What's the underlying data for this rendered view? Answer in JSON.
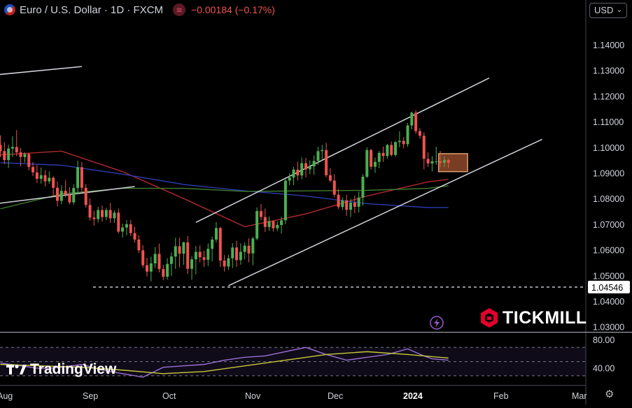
{
  "header": {
    "symbol": "Euro / U.S. Dollar · 1D · FXCM",
    "change": "−0.00184 (−0.17%)",
    "icons": [
      "flag-icon",
      "indicator-icon"
    ]
  },
  "currency": "USD",
  "brand": {
    "tickmill": "TICKMILL",
    "tradingview": "TradingView"
  },
  "colors": {
    "background": "#000000",
    "up": "#4caf50",
    "down": "#ef5350",
    "sma_red": "#b2282e",
    "sma_green": "#3f7d2f",
    "sma_blue": "#2a3db0",
    "channel": "#d1d4dc",
    "rsi": "#9b6fd6",
    "rsi_ma": "#c8c83a",
    "tickmill_red": "#e4002b"
  },
  "chart_data": [
    {
      "type": "candlestick",
      "title": "Euro / U.S. Dollar · 1D · FXCM",
      "x_ticks": [
        "Aug",
        "Sep",
        "Oct",
        "Nov",
        "Dec",
        "2024",
        "Feb",
        "Mar"
      ],
      "y_ticks": [
        1.03,
        1.04,
        1.05,
        1.06,
        1.07,
        1.08,
        1.09,
        1.1,
        1.11,
        1.12,
        1.13,
        1.14
      ],
      "ylim": [
        1.028,
        1.152
      ],
      "price_label": "1.04546",
      "support_level": 1.04546,
      "candles": [
        [
          1.101,
          1.1046,
          1.0962,
          1.0985
        ],
        [
          1.0985,
          1.102,
          1.0934,
          1.095
        ],
        [
          1.095,
          1.101,
          1.0919,
          1.0995
        ],
        [
          1.0995,
          1.1043,
          1.0962,
          1.1001
        ],
        [
          1.1001,
          1.1067,
          1.0965,
          1.098
        ],
        [
          1.098,
          1.0997,
          1.0926,
          1.0962
        ],
        [
          1.0962,
          1.098,
          1.094,
          1.0974
        ],
        [
          1.0974,
          1.0978,
          1.091,
          1.0923
        ],
        [
          1.0923,
          1.0942,
          1.0888,
          1.0902
        ],
        [
          1.0902,
          1.0931,
          1.0861,
          1.0877
        ],
        [
          1.0877,
          1.0921,
          1.0858,
          1.0891
        ],
        [
          1.0891,
          1.0911,
          1.0847,
          1.0867
        ],
        [
          1.0867,
          1.0906,
          1.0857,
          1.0881
        ],
        [
          1.0881,
          1.0887,
          1.0808,
          1.0842
        ],
        [
          1.0842,
          1.0867,
          1.077,
          1.0791
        ],
        [
          1.0791,
          1.0852,
          1.0778,
          1.083
        ],
        [
          1.083,
          1.0871,
          1.0805,
          1.0815
        ],
        [
          1.0815,
          1.0845,
          1.0777,
          1.0785
        ],
        [
          1.0785,
          1.0856,
          1.0777,
          1.0841
        ],
        [
          1.0841,
          1.0948,
          1.0818,
          1.0922
        ],
        [
          1.0922,
          1.0942,
          1.0823,
          1.0842
        ],
        [
          1.0842,
          1.0856,
          1.0764,
          1.0775
        ],
        [
          1.0775,
          1.08,
          1.0714,
          1.0726
        ],
        [
          1.0726,
          1.0752,
          1.0694,
          1.072
        ],
        [
          1.072,
          1.0768,
          1.0707,
          1.0755
        ],
        [
          1.0755,
          1.0773,
          1.071,
          1.0728
        ],
        [
          1.0728,
          1.0764,
          1.0716,
          1.0755
        ],
        [
          1.0755,
          1.0782,
          1.0705,
          1.0723
        ],
        [
          1.0723,
          1.0754,
          1.0705,
          1.0745
        ],
        [
          1.0745,
          1.0761,
          1.0663,
          1.0671
        ],
        [
          1.0671,
          1.0702,
          1.0648,
          1.0687
        ],
        [
          1.0687,
          1.0716,
          1.0657,
          1.07
        ],
        [
          1.07,
          1.0716,
          1.0653,
          1.0665
        ],
        [
          1.0665,
          1.0689,
          1.0628,
          1.064
        ],
        [
          1.064,
          1.0656,
          1.0588,
          1.0598
        ],
        [
          1.0598,
          1.0618,
          1.053,
          1.054
        ],
        [
          1.054,
          1.0569,
          1.0496,
          1.0515
        ],
        [
          1.0515,
          1.0573,
          1.0477,
          1.0547
        ],
        [
          1.0547,
          1.0611,
          1.0529,
          1.0584
        ],
        [
          1.0584,
          1.0624,
          1.0512,
          1.0525
        ],
        [
          1.0525,
          1.0542,
          1.0481,
          1.0495
        ],
        [
          1.0495,
          1.0567,
          1.0484,
          1.0545
        ],
        [
          1.0545,
          1.059,
          1.0498,
          1.0574
        ],
        [
          1.0574,
          1.0647,
          1.0526,
          1.0614
        ],
        [
          1.0614,
          1.0647,
          1.0531,
          1.0585
        ],
        [
          1.0585,
          1.0632,
          1.0541,
          1.0629
        ],
        [
          1.0629,
          1.0654,
          1.0505,
          1.0526
        ],
        [
          1.0526,
          1.0575,
          1.0483,
          1.0563
        ],
        [
          1.0563,
          1.0615,
          1.0504,
          1.0592
        ],
        [
          1.0592,
          1.0617,
          1.0551,
          1.0571
        ],
        [
          1.0571,
          1.0596,
          1.0533,
          1.0561
        ],
        [
          1.0561,
          1.0625,
          1.0537,
          1.0604
        ],
        [
          1.0604,
          1.0651,
          1.0555,
          1.064
        ],
        [
          1.064,
          1.0708,
          1.0629,
          1.0685
        ],
        [
          1.0685,
          1.069,
          1.0533,
          1.0558
        ],
        [
          1.0558,
          1.058,
          1.0515,
          1.0535
        ],
        [
          1.0535,
          1.0581,
          1.0522,
          1.0567
        ],
        [
          1.0567,
          1.0626,
          1.0529,
          1.0609
        ],
        [
          1.0609,
          1.0636,
          1.0533,
          1.056
        ],
        [
          1.056,
          1.0625,
          1.0542,
          1.0592
        ],
        [
          1.0592,
          1.0629,
          1.0563,
          1.0616
        ],
        [
          1.0616,
          1.0645,
          1.0551,
          1.0586
        ],
        [
          1.0586,
          1.0651,
          1.054,
          1.0644
        ],
        [
          1.0644,
          1.0766,
          1.0637,
          1.0751
        ],
        [
          1.0751,
          1.0779,
          1.0716,
          1.0728
        ],
        [
          1.0728,
          1.0761,
          1.067,
          1.0689
        ],
        [
          1.0689,
          1.073,
          1.0674,
          1.0712
        ],
        [
          1.0712,
          1.0714,
          1.0671,
          1.0684
        ],
        [
          1.0684,
          1.0711,
          1.0673,
          1.0697
        ],
        [
          1.0697,
          1.0729,
          1.0663,
          1.0715
        ],
        [
          1.0715,
          1.0878,
          1.07,
          1.087
        ],
        [
          1.087,
          1.0898,
          1.0852,
          1.0882
        ],
        [
          1.0882,
          1.0923,
          1.0852,
          1.0913
        ],
        [
          1.0913,
          1.0944,
          1.0871,
          1.089
        ],
        [
          1.089,
          1.096,
          1.0875,
          1.0938
        ],
        [
          1.0938,
          1.0959,
          1.0883,
          1.0914
        ],
        [
          1.0914,
          1.0949,
          1.0895,
          1.0925
        ],
        [
          1.0925,
          1.0968,
          1.0892,
          1.0947
        ],
        [
          1.0947,
          1.1002,
          1.0931,
          1.0985
        ],
        [
          1.0985,
          1.1009,
          1.0948,
          1.0989
        ],
        [
          1.0989,
          1.1017,
          1.0883,
          1.0891
        ],
        [
          1.0891,
          1.0919,
          1.0864,
          1.087
        ],
        [
          1.087,
          1.0895,
          1.0805,
          1.0815
        ],
        [
          1.0815,
          1.0837,
          1.0759,
          1.0767
        ],
        [
          1.0767,
          1.0804,
          1.0756,
          1.0793
        ],
        [
          1.0793,
          1.0815,
          1.0733,
          1.0756
        ],
        [
          1.0756,
          1.0799,
          1.0728,
          1.0784
        ],
        [
          1.0784,
          1.0811,
          1.0743,
          1.0768
        ],
        [
          1.0768,
          1.0827,
          1.0746,
          1.0804
        ],
        [
          1.0804,
          1.0895,
          1.0772,
          1.0885
        ],
        [
          1.0885,
          1.1,
          1.088,
          1.0989
        ],
        [
          1.0989,
          1.0994,
          1.0913,
          1.0924
        ],
        [
          1.0924,
          1.096,
          1.09,
          1.0943
        ],
        [
          1.0943,
          1.0986,
          1.0918,
          1.0978
        ],
        [
          1.0978,
          1.1003,
          1.0943,
          1.0966
        ],
        [
          1.0966,
          1.1013,
          1.0956,
          1.1009
        ],
        [
          1.1009,
          1.1022,
          1.0964,
          1.097
        ],
        [
          1.097,
          1.1025,
          1.0963,
          1.102
        ],
        [
          1.102,
          1.1062,
          1.1,
          1.1025
        ],
        [
          1.1025,
          1.104,
          1.0996,
          1.1012
        ],
        [
          1.1012,
          1.1095,
          1.1002,
          1.1085
        ],
        [
          1.1085,
          1.1139,
          1.107,
          1.1135
        ],
        [
          1.1135,
          1.1145,
          1.1053,
          1.1063
        ],
        [
          1.1063,
          1.1075,
          1.1034,
          1.1045
        ],
        [
          1.1045,
          1.1058,
          1.0914,
          1.0955
        ],
        [
          1.0955,
          1.098,
          1.0923,
          1.0937
        ],
        [
          1.0937,
          1.0965,
          1.0906,
          1.0945
        ],
        [
          1.0945,
          1.1002,
          1.0932,
          1.0945
        ],
        [
          1.0945,
          1.0986,
          1.0921,
          1.094
        ],
        [
          1.094,
          1.0965,
          1.0923,
          1.095
        ],
        [
          1.095,
          1.0955,
          1.092,
          1.094
        ]
      ],
      "series": [
        {
          "name": "SMA (red)",
          "x": [
            0,
            15,
            30,
            45,
            60,
            75,
            90,
            105,
            110
          ],
          "values": [
            1.097,
            1.0985,
            1.0905,
            1.08,
            1.069,
            1.074,
            1.081,
            1.0865,
            1.0875
          ]
        },
        {
          "name": "SMA (blue)",
          "x": [
            0,
            15,
            30,
            45,
            60,
            75,
            90,
            105,
            110
          ],
          "values": [
            1.094,
            1.093,
            1.0895,
            1.0855,
            1.083,
            1.081,
            1.078,
            1.0765,
            1.0765
          ]
        },
        {
          "name": "SMA (green)",
          "x": [
            0,
            15,
            30,
            45,
            60,
            75,
            90,
            105,
            110
          ],
          "values": [
            1.076,
            1.0818,
            1.084,
            1.084,
            1.0828,
            1.083,
            1.0832,
            1.084,
            1.085
          ]
        }
      ],
      "trendlines": [
        {
          "name": "channel upper",
          "points": [
            [
              48,
              1.0707
            ],
            [
              120,
              1.127
            ]
          ]
        },
        {
          "name": "channel lower",
          "points": [
            [
              56,
              1.046
            ],
            [
              133,
              1.1031
            ]
          ]
        },
        {
          "name": "short line left",
          "points": [
            [
              -6,
              1.1275
            ],
            [
              20,
              1.1315
            ]
          ]
        },
        {
          "name": "short line mid",
          "points": [
            [
              -6,
              1.077
            ],
            [
              33,
              1.0847
            ]
          ]
        }
      ],
      "highlight_box": {
        "x0": 107.6,
        "x1": 114.7,
        "y0": 1.0905,
        "y1": 1.0975
      },
      "grid": false
    },
    {
      "type": "line",
      "title": "RSI",
      "y_ticks": [
        40,
        80
      ],
      "ylim": [
        20,
        90
      ],
      "levels": [
        70,
        50,
        30
      ],
      "series": [
        {
          "name": "RSI",
          "x": [
            0,
            5,
            10,
            15,
            20,
            25,
            30,
            35,
            40,
            45,
            50,
            55,
            60,
            65,
            70,
            75,
            80,
            85,
            90,
            95,
            100,
            104,
            106,
            110
          ],
          "values": [
            48,
            44,
            40,
            42,
            46,
            38,
            33,
            28,
            42,
            44,
            46,
            52,
            56,
            58,
            64,
            70,
            60,
            52,
            56,
            60,
            68,
            58,
            54,
            52
          ]
        },
        {
          "name": "RSI MA",
          "x": [
            0,
            10,
            20,
            30,
            40,
            50,
            60,
            70,
            80,
            90,
            100,
            110
          ],
          "values": [
            46,
            44,
            42,
            38,
            33,
            36,
            44,
            52,
            60,
            64,
            60,
            55
          ]
        }
      ]
    }
  ]
}
